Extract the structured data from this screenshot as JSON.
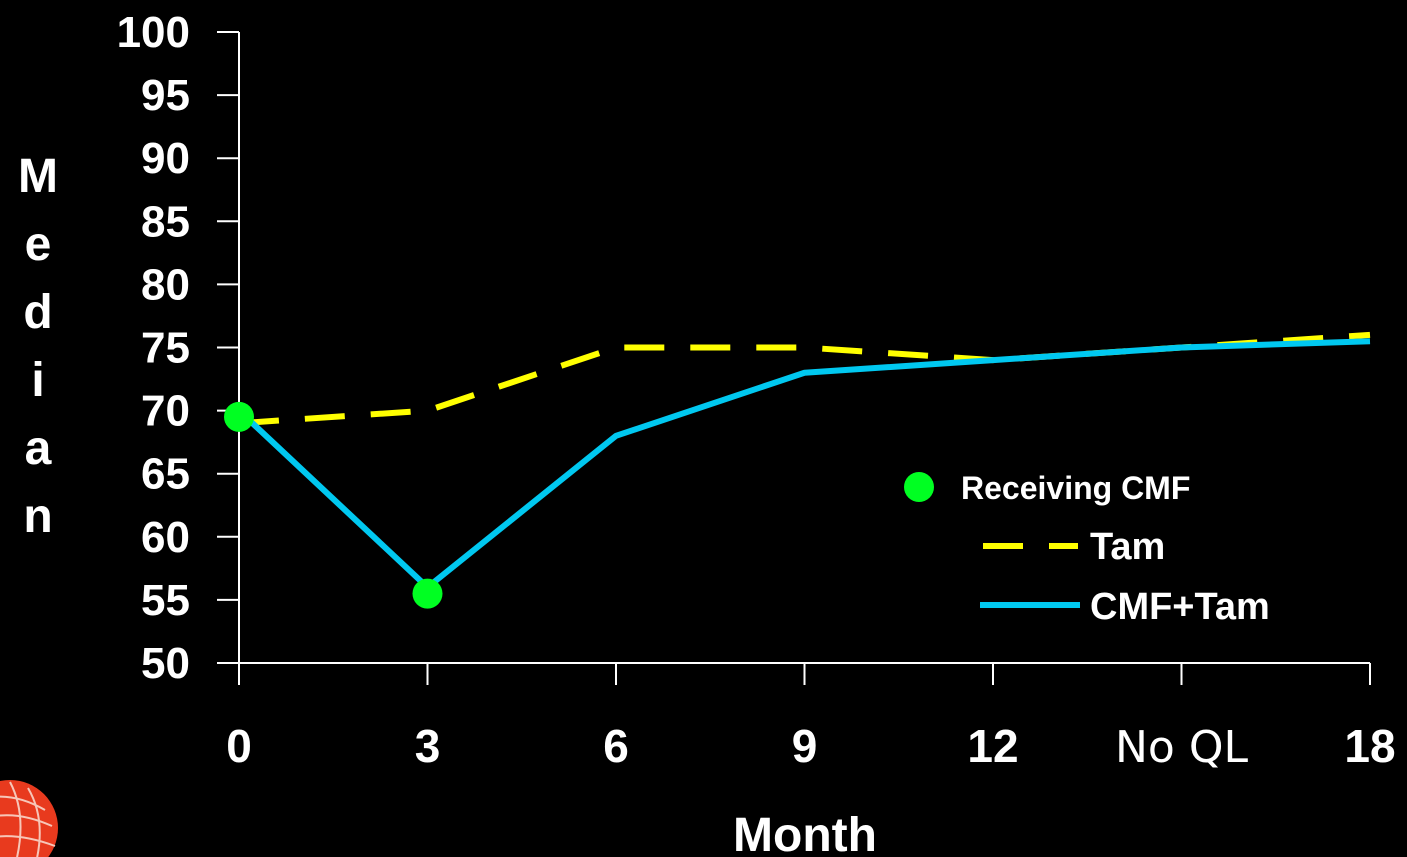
{
  "chart_data": {
    "type": "line",
    "x_tick_labels": [
      "0",
      "3",
      "6",
      "9",
      "12",
      "No QL",
      "18"
    ],
    "x": [
      0,
      3,
      6,
      9,
      12,
      15,
      18
    ],
    "xlabel": "Month",
    "ylabel": "Median",
    "ylim": [
      50,
      100
    ],
    "y_ticks": [
      50,
      55,
      60,
      65,
      70,
      75,
      80,
      85,
      90,
      95,
      100
    ],
    "grid": false,
    "legend_position": "right",
    "series": [
      {
        "name": "Tam",
        "style": "dashed",
        "color": "#ffff00",
        "x": [
          0,
          3,
          6,
          9,
          12,
          15,
          18
        ],
        "values": [
          69,
          70,
          75,
          75,
          74,
          75,
          76
        ]
      },
      {
        "name": "CMF+Tam",
        "style": "solid",
        "color": "#00c8f0",
        "x": [
          0,
          3,
          6,
          9,
          12,
          15,
          18
        ],
        "values": [
          70,
          56,
          68,
          73,
          74,
          75,
          75.5
        ]
      }
    ],
    "markers": {
      "name": "Receiving CMF",
      "color": "#00ff22",
      "points": [
        {
          "x": 0,
          "y": 69.5
        },
        {
          "x": 3,
          "y": 55.5
        }
      ]
    }
  },
  "colors": {
    "background": "#000000",
    "axis": "#ffffff",
    "logo": "#e83a1e"
  },
  "logo": {
    "icon": "globe-logo-icon"
  }
}
